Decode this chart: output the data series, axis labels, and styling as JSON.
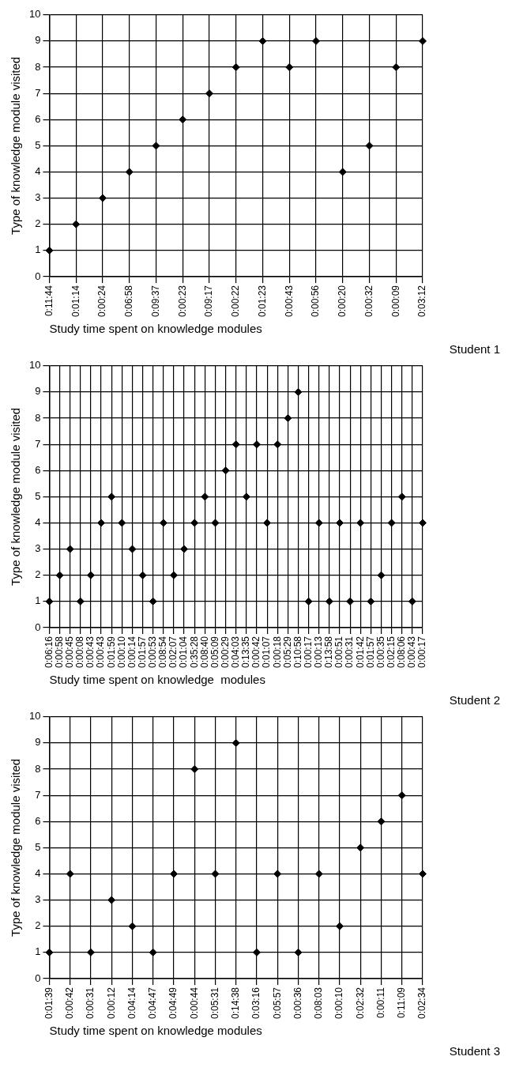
{
  "chart_data": [
    {
      "type": "scatter",
      "xlabel": "Study time spent on knowledge modules",
      "ylabel": "Type of knowledge module visited",
      "annotations": [
        "Student 1"
      ],
      "categories": [
        "0:11:44",
        "0:01:14",
        "0:00:24",
        "0:06:58",
        "0:09:37",
        "0:00:23",
        "0:09:17",
        "0:00:22",
        "0:01:23",
        "0:00:43",
        "0:00:56",
        "0:00:20",
        "0:00:32",
        "0:00:09",
        "0:03:12"
      ],
      "series": [
        {
          "color": "#000000",
          "values": [
            1,
            2,
            3,
            4,
            5,
            6,
            7,
            8,
            9,
            8,
            9,
            4,
            5,
            8,
            9
          ]
        }
      ],
      "ylim": [
        0,
        10
      ],
      "yticks": [
        0,
        1,
        2,
        3,
        4,
        5,
        6,
        7,
        8,
        9,
        10
      ],
      "grid": true,
      "marker": "diamond"
    },
    {
      "type": "scatter",
      "xlabel": "Study time spent on knowledge  modules",
      "ylabel": "Type of knowledge module visited",
      "annotations": [
        "Student 2"
      ],
      "categories": [
        "0:06:16",
        "0:00:58",
        "0:00:45",
        "0:00:08",
        "0:00:43",
        "0:00:43",
        "0:01:59",
        "0:00:10",
        "0:00:14",
        "0:01:57",
        "0:00:53",
        "0:08:54",
        "0:02:07",
        "0:01:04",
        "0:35:28",
        "0:08:40",
        "0:05:09",
        "0:00:29",
        "0:04:03",
        "0:13:35",
        "0:00:42",
        "0:01:07",
        "0:00:18",
        "0:05:29",
        "0:10:58",
        "0:00:17",
        "0:00:13",
        "0:13:58",
        "0:00:51",
        "0:00:31",
        "0:01:42",
        "0:01:57",
        "0:00:35",
        "0:02:15",
        "0:08:06",
        "0:00:43",
        "0:00:17"
      ],
      "series": [
        {
          "color": "#000000",
          "values": [
            1,
            2,
            3,
            1,
            2,
            4,
            5,
            4,
            3,
            2,
            1,
            4,
            2,
            3,
            4,
            5,
            4,
            6,
            7,
            5,
            7,
            4,
            7,
            8,
            9,
            1,
            4,
            1,
            4,
            1,
            4,
            1,
            2,
            4,
            5,
            1,
            4
          ]
        }
      ],
      "ylim": [
        0,
        10
      ],
      "yticks": [
        0,
        1,
        2,
        3,
        4,
        5,
        6,
        7,
        8,
        9,
        10
      ],
      "grid": true,
      "marker": "diamond"
    },
    {
      "type": "scatter",
      "xlabel": "Study time spent on knowledge modules",
      "ylabel": "Type of knowledge module visited",
      "annotations": [
        "Student 3"
      ],
      "categories": [
        "0:01:39",
        "0:00:42",
        "0:00:31",
        "0:00:12",
        "0:04:14",
        "0:04:47",
        "0:04:49",
        "0:00:44",
        "0:05:31",
        "0:14:38",
        "0:03:16",
        "0:05:57",
        "0:00:36",
        "0:08:03",
        "0:00:10",
        "0:02:32",
        "0:00:11",
        "0:11:09",
        "0:02:34"
      ],
      "series": [
        {
          "color": "#000000",
          "values": [
            1,
            4,
            1,
            3,
            2,
            1,
            4,
            8,
            4,
            9,
            1,
            4,
            1,
            4,
            2,
            5,
            6,
            7,
            4
          ]
        }
      ],
      "ylim": [
        0,
        10
      ],
      "yticks": [
        0,
        1,
        2,
        3,
        4,
        5,
        6,
        7,
        8,
        9,
        10
      ],
      "grid": true,
      "marker": "diamond"
    }
  ]
}
